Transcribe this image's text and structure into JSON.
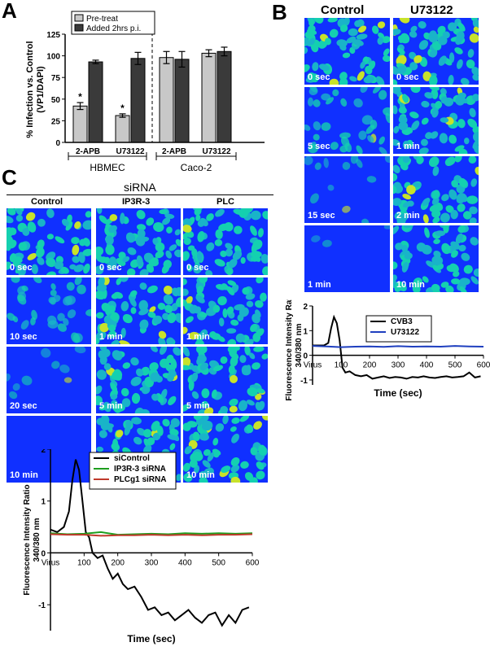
{
  "panels": {
    "a": "A",
    "b": "B",
    "c": "C"
  },
  "chart_a": {
    "type": "bar",
    "ylabel_line1": "% Infection vs. Control",
    "ylabel_line2": "(VP1/DAPI)",
    "ylim": [
      0,
      125
    ],
    "yticks": [
      "0",
      "25",
      "50",
      "75",
      "100",
      "125"
    ],
    "legend": [
      "Pre-treat",
      "Added 2hrs p.i."
    ],
    "categories": [
      "2-APB",
      "U73122",
      "2-APB",
      "U73122"
    ],
    "groups": [
      "HBMEC",
      "Caco-2"
    ],
    "colors": {
      "pre": "#c8c8c8",
      "post": "#3a3a3a"
    },
    "series": [
      {
        "name": "Pre-treat",
        "values": [
          42,
          31,
          98,
          103
        ],
        "err": [
          4,
          2,
          7,
          4
        ],
        "sig": [
          "*",
          "*",
          "",
          ""
        ]
      },
      {
        "name": "Added 2hrs p.i.",
        "values": [
          93,
          97,
          96,
          105
        ],
        "err": [
          2,
          7,
          9,
          5
        ],
        "sig": [
          "",
          "",
          "",
          ""
        ]
      }
    ]
  },
  "panel_b": {
    "col_headers": [
      "Control",
      "U73122"
    ],
    "control_times": [
      "0 sec",
      "5 sec",
      "15 sec",
      "1 min"
    ],
    "u73122_times": [
      "0 sec",
      "1 min",
      "2 min",
      "10 min"
    ]
  },
  "chart_b": {
    "type": "line",
    "ylabel_line1": "Fluorescence Intensity Ratio",
    "ylabel_line2": "340/380 nm",
    "xlabel": "Time (sec)",
    "xticks": [
      "Virus",
      "100",
      "200",
      "300",
      "400",
      "500",
      "600"
    ],
    "yticks": [
      "-1",
      "0",
      "1",
      "2"
    ],
    "legend": [
      "CVB3",
      "U73122"
    ],
    "colors": {
      "CVB3": "#000000",
      "U73122": "#1f3fbf"
    },
    "series": [
      {
        "name": "CVB3",
        "x": [
          0,
          20,
          40,
          55,
          65,
          75,
          85,
          95,
          105,
          115,
          130,
          150,
          170,
          190,
          210,
          230,
          250,
          270,
          290,
          310,
          330,
          350,
          370,
          390,
          410,
          430,
          450,
          470,
          490,
          510,
          530,
          550,
          570,
          590
        ],
        "y": [
          0.4,
          0.4,
          0.4,
          0.5,
          1.1,
          1.55,
          1.3,
          0.6,
          -0.5,
          -0.7,
          -0.65,
          -0.8,
          -0.85,
          -0.8,
          -0.95,
          -0.9,
          -0.85,
          -0.92,
          -0.88,
          -0.9,
          -0.95,
          -0.88,
          -0.9,
          -0.85,
          -0.9,
          -0.92,
          -0.88,
          -0.85,
          -0.9,
          -0.88,
          -0.85,
          -0.7,
          -0.9,
          -0.85
        ]
      },
      {
        "name": "U73122",
        "x": [
          0,
          50,
          100,
          150,
          200,
          250,
          300,
          350,
          400,
          450,
          500,
          550,
          600
        ],
        "y": [
          0.38,
          0.36,
          0.33,
          0.35,
          0.36,
          0.34,
          0.37,
          0.35,
          0.36,
          0.35,
          0.38,
          0.36,
          0.35
        ]
      }
    ]
  },
  "panel_c": {
    "title": "siRNA",
    "col_headers": [
      "Control",
      "IP3R-3",
      "PLC"
    ],
    "control_times": [
      "0 sec",
      "10 sec",
      "20 sec",
      "10 min"
    ],
    "ip3r_times": [
      "0 sec",
      "1 min",
      "5 min",
      "10 min"
    ],
    "plc_times": [
      "0 sec",
      "1 min",
      "5 min",
      "10 min"
    ]
  },
  "chart_c": {
    "type": "line",
    "ylabel_line1": "Fluorescence Intensity Ratio",
    "ylabel_line2": "340/380 nm",
    "xlabel": "Time (sec)",
    "xticks": [
      "Virus",
      "100",
      "200",
      "300",
      "400",
      "500",
      "600"
    ],
    "yticks": [
      "-1",
      "0",
      "1",
      "2"
    ],
    "legend": [
      "siControl",
      "IP3R-3 siRNA",
      "PLCg1 siRNA"
    ],
    "colors": {
      "siControl": "#000000",
      "IP3R-3 siRNA": "#1e9e1e",
      "PLCg1 siRNA": "#c0392b"
    },
    "series": [
      {
        "name": "siControl",
        "x": [
          0,
          20,
          40,
          55,
          65,
          75,
          85,
          95,
          105,
          115,
          125,
          140,
          155,
          170,
          185,
          200,
          215,
          230,
          250,
          270,
          290,
          310,
          330,
          350,
          370,
          390,
          410,
          430,
          450,
          470,
          490,
          510,
          530,
          550,
          570,
          590
        ],
        "y": [
          0.45,
          0.4,
          0.5,
          0.8,
          1.4,
          1.8,
          1.6,
          1.0,
          0.4,
          0.3,
          0.0,
          -0.1,
          -0.05,
          -0.3,
          -0.5,
          -0.4,
          -0.6,
          -0.7,
          -0.65,
          -0.85,
          -1.1,
          -1.05,
          -1.2,
          -1.15,
          -1.3,
          -1.2,
          -1.1,
          -1.25,
          -1.35,
          -1.2,
          -1.15,
          -1.4,
          -1.2,
          -1.35,
          -1.1,
          -1.05
        ]
      },
      {
        "name": "IP3R-3 siRNA",
        "x": [
          0,
          50,
          100,
          150,
          200,
          250,
          300,
          350,
          400,
          450,
          500,
          550,
          600
        ],
        "y": [
          0.38,
          0.36,
          0.37,
          0.4,
          0.35,
          0.36,
          0.37,
          0.36,
          0.38,
          0.37,
          0.38,
          0.37,
          0.38
        ]
      },
      {
        "name": "PLCg1 siRNA",
        "x": [
          0,
          50,
          100,
          150,
          200,
          250,
          300,
          350,
          400,
          450,
          500,
          550,
          600
        ],
        "y": [
          0.36,
          0.35,
          0.35,
          0.33,
          0.34,
          0.34,
          0.35,
          0.34,
          0.35,
          0.34,
          0.35,
          0.35,
          0.36
        ]
      }
    ]
  }
}
